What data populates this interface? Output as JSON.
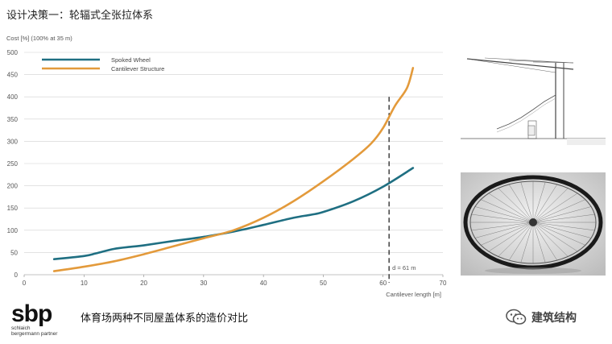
{
  "slide": {
    "title": "设计决策一：轮辐式全张拉体系",
    "caption": "体育场两种不同屋盖体系的造价对比",
    "watermark": "建筑结构",
    "logo": {
      "mark": "sbp",
      "line1": "schlaich",
      "line2": "bergermann partner"
    }
  },
  "icons": {
    "watermark": "wechat-icon",
    "photo1": "stadium-cantilever-section-image",
    "photo2": "bicycle-wheel-photo"
  },
  "colors": {
    "spoked": "#1f6f82",
    "cantilever": "#e39a3b",
    "grid": "#d0d0d0"
  },
  "chart_data": {
    "type": "line",
    "ylabel": "Cost [%] (100% at 35 m)",
    "xlabel": "Cantilever length [m]",
    "xlim": [
      0,
      70
    ],
    "ylim": [
      0,
      500
    ],
    "x_ticks": [
      "0",
      "10",
      "20",
      "30",
      "40",
      "50",
      "60",
      "70"
    ],
    "y_ticks": [
      "0",
      "50",
      "100",
      "150",
      "200",
      "250",
      "300",
      "350",
      "400",
      "450",
      "500"
    ],
    "grid": "horizontal",
    "legend_position": "top-left",
    "series": [
      {
        "name": "Spoked Wheel",
        "points": [
          [
            5,
            35
          ],
          [
            10,
            42
          ],
          [
            12,
            48
          ],
          [
            15,
            58
          ],
          [
            18,
            63
          ],
          [
            20,
            66
          ],
          [
            25,
            76
          ],
          [
            30,
            85
          ],
          [
            35,
            97
          ],
          [
            40,
            112
          ],
          [
            45,
            128
          ],
          [
            48,
            135
          ],
          [
            50,
            141
          ],
          [
            55,
            165
          ],
          [
            60,
            198
          ],
          [
            65,
            240
          ]
        ]
      },
      {
        "name": "Cantilever Structure",
        "points": [
          [
            5,
            8
          ],
          [
            10,
            18
          ],
          [
            15,
            30
          ],
          [
            20,
            46
          ],
          [
            25,
            64
          ],
          [
            30,
            82
          ],
          [
            35,
            100
          ],
          [
            40,
            128
          ],
          [
            45,
            165
          ],
          [
            50,
            210
          ],
          [
            55,
            260
          ],
          [
            58,
            295
          ],
          [
            60,
            330
          ],
          [
            62,
            380
          ],
          [
            64,
            420
          ],
          [
            65,
            465
          ]
        ]
      }
    ],
    "annotations": [
      {
        "type": "vline",
        "x": 61,
        "label": "d = 61 m"
      }
    ]
  }
}
